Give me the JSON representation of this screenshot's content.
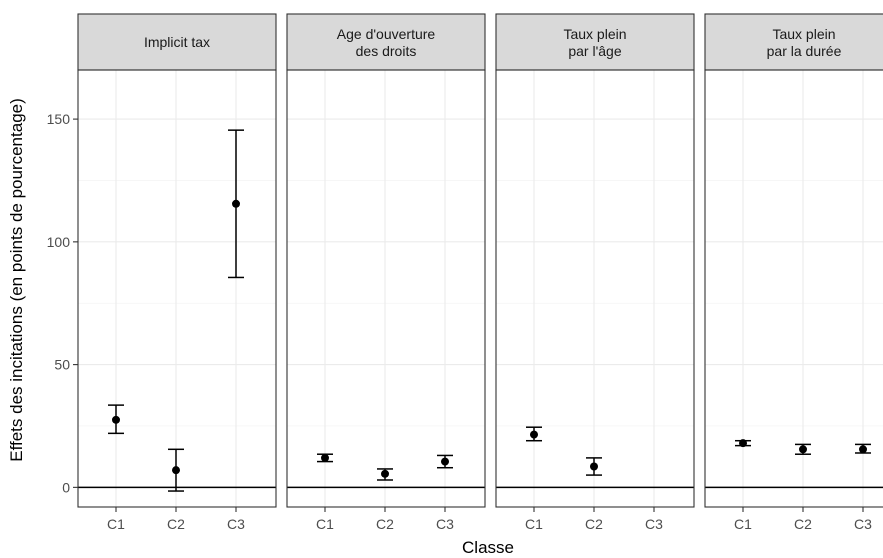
{
  "chart_data": {
    "type": "scatter",
    "subtype": "point with error bars, faceted",
    "xlabel": "Classe",
    "ylabel": "Effets des incitations (en points de pourcentage)",
    "categories": [
      "C1",
      "C2",
      "C3"
    ],
    "ylim": [
      -8,
      170
    ],
    "yticks": [
      0,
      50,
      100,
      150
    ],
    "reference_line": 0,
    "grid": true,
    "panels": [
      {
        "title": [
          "Implicit tax"
        ],
        "points": [
          {
            "x": "C1",
            "y": 27.5,
            "lower": 22,
            "upper": 33.5
          },
          {
            "x": "C2",
            "y": 7,
            "lower": -1.5,
            "upper": 15.5
          },
          {
            "x": "C3",
            "y": 115.5,
            "lower": 85.5,
            "upper": 145.5
          }
        ]
      },
      {
        "title": [
          "Age d'ouverture",
          "des droits"
        ],
        "points": [
          {
            "x": "C1",
            "y": 12,
            "lower": 10.5,
            "upper": 13.5
          },
          {
            "x": "C2",
            "y": 5.5,
            "lower": 3,
            "upper": 7.5
          },
          {
            "x": "C3",
            "y": 10.5,
            "lower": 8,
            "upper": 13
          }
        ]
      },
      {
        "title": [
          "Taux plein",
          "par l'âge"
        ],
        "points": [
          {
            "x": "C1",
            "y": 21.5,
            "lower": 19,
            "upper": 24.5
          },
          {
            "x": "C2",
            "y": 8.5,
            "lower": 5,
            "upper": 12
          }
        ]
      },
      {
        "title": [
          "Taux plein",
          "par la durée"
        ],
        "points": [
          {
            "x": "C1",
            "y": 18,
            "lower": 17,
            "upper": 19
          },
          {
            "x": "C2",
            "y": 15.5,
            "lower": 13.5,
            "upper": 17.5
          },
          {
            "x": "C3",
            "y": 15.5,
            "lower": 14,
            "upper": 17.5
          }
        ]
      }
    ]
  }
}
